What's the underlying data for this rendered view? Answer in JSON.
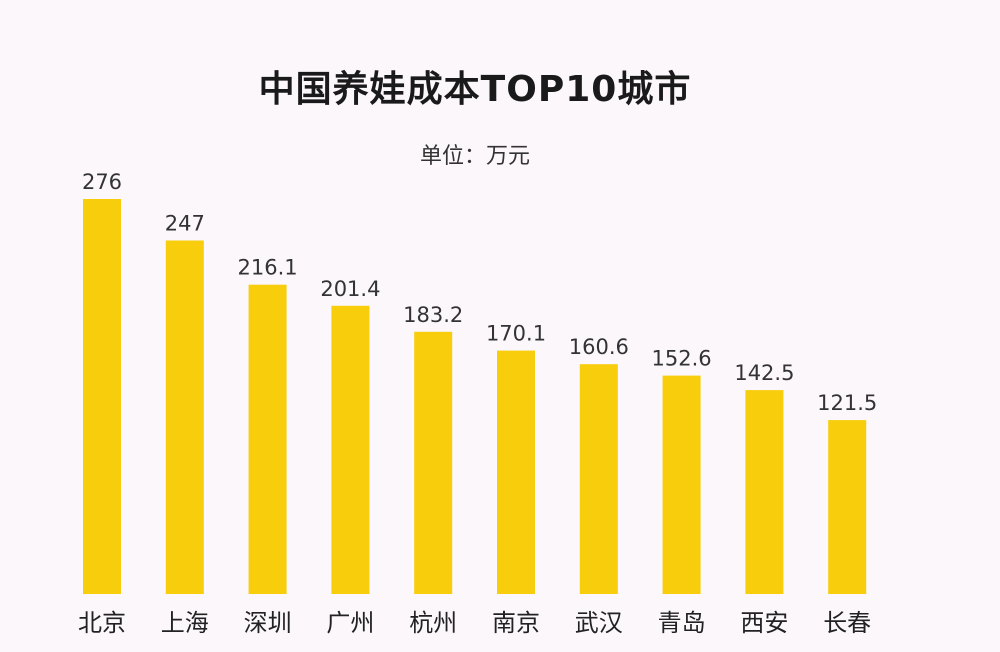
{
  "chart_data": {
    "type": "bar",
    "title": "中国养娃成本TOP10城市",
    "subtitle": "单位：万元",
    "categories": [
      "北京",
      "上海",
      "深圳",
      "广州",
      "杭州",
      "南京",
      "武汉",
      "青岛",
      "西安",
      "长春"
    ],
    "values": [
      276,
      247,
      216.1,
      201.4,
      183.2,
      170.1,
      160.6,
      152.6,
      142.5,
      121.5
    ],
    "value_labels": [
      "276",
      "247",
      "216.1",
      "201.4",
      "183.2",
      "170.1",
      "160.6",
      "152.6",
      "142.5",
      "121.5"
    ],
    "xlabel": "",
    "ylabel": "",
    "grid": false,
    "legend": "none",
    "bar_color": "#f7cd0c"
  }
}
